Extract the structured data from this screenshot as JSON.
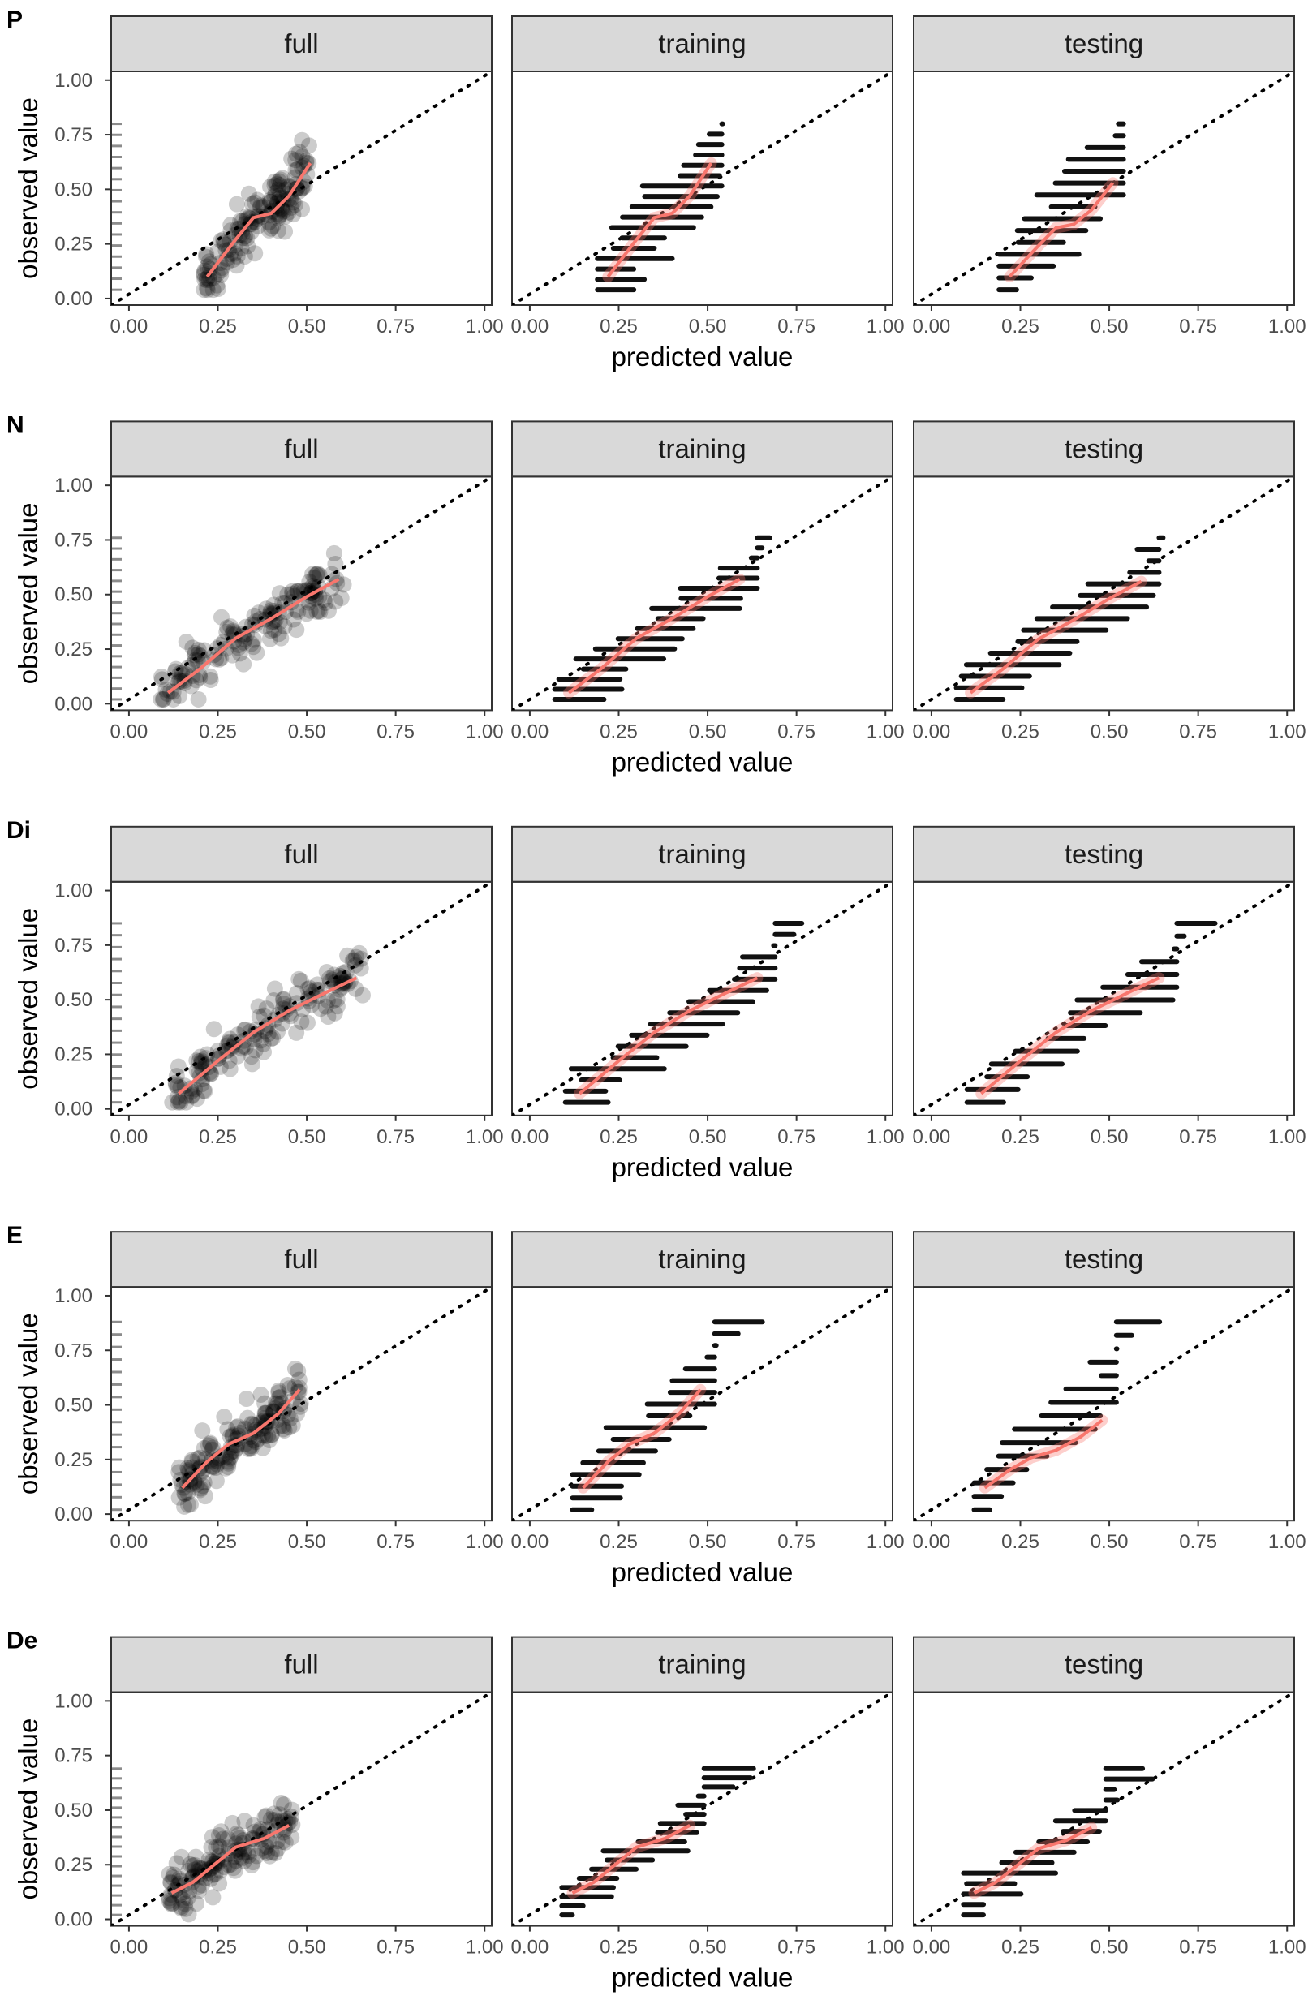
{
  "chart_data": {
    "type": "scatter",
    "description_text": "",
    "x_label": "predicted value",
    "y_label": "observed value",
    "facets": [
      "full",
      "training",
      "testing"
    ],
    "x_ticks": [
      "0.00",
      "0.25",
      "0.50",
      "0.75",
      "1.00"
    ],
    "y_ticks": [
      "0.00",
      "0.25",
      "0.50",
      "0.75",
      "1.00"
    ],
    "xlim": [
      -0.05,
      1.02
    ],
    "ylim": [
      -0.03,
      1.04
    ],
    "reference_line": "y = x",
    "rows": [
      {
        "label": "P",
        "x_range": [
          0.21,
          0.51
        ],
        "y_range": [
          0.04,
          0.8
        ],
        "trend": [
          [
            0.22,
            0.1
          ],
          [
            0.3,
            0.27
          ],
          [
            0.35,
            0.37
          ],
          [
            0.4,
            0.39
          ],
          [
            0.45,
            0.47
          ],
          [
            0.51,
            0.62
          ]
        ],
        "test_trend_end": 0.53
      },
      {
        "label": "N",
        "x_range": [
          0.09,
          0.61
        ],
        "y_range": [
          0.02,
          0.76
        ],
        "trend": [
          [
            0.11,
            0.05
          ],
          [
            0.2,
            0.16
          ],
          [
            0.3,
            0.3
          ],
          [
            0.4,
            0.39
          ],
          [
            0.5,
            0.49
          ],
          [
            0.59,
            0.57
          ]
        ],
        "test_trend_end": 0.56
      },
      {
        "label": "Di",
        "x_range": [
          0.12,
          0.66
        ],
        "y_range": [
          0.03,
          0.85
        ],
        "trend": [
          [
            0.14,
            0.07
          ],
          [
            0.25,
            0.22
          ],
          [
            0.35,
            0.35
          ],
          [
            0.45,
            0.45
          ],
          [
            0.55,
            0.53
          ],
          [
            0.64,
            0.6
          ]
        ],
        "test_trend_end": 0.6
      },
      {
        "label": "E",
        "x_range": [
          0.14,
          0.49
        ],
        "y_range": [
          0.02,
          0.88
        ],
        "trend": [
          [
            0.15,
            0.12
          ],
          [
            0.22,
            0.24
          ],
          [
            0.28,
            0.32
          ],
          [
            0.35,
            0.37
          ],
          [
            0.42,
            0.46
          ],
          [
            0.48,
            0.57
          ]
        ],
        "test_trend_end": 0.43
      },
      {
        "label": "De",
        "x_range": [
          0.11,
          0.46
        ],
        "y_range": [
          0.02,
          0.69
        ],
        "trend": [
          [
            0.12,
            0.12
          ],
          [
            0.18,
            0.17
          ],
          [
            0.24,
            0.25
          ],
          [
            0.3,
            0.33
          ],
          [
            0.38,
            0.37
          ],
          [
            0.45,
            0.43
          ]
        ],
        "test_trend_end": 0.42
      }
    ]
  }
}
